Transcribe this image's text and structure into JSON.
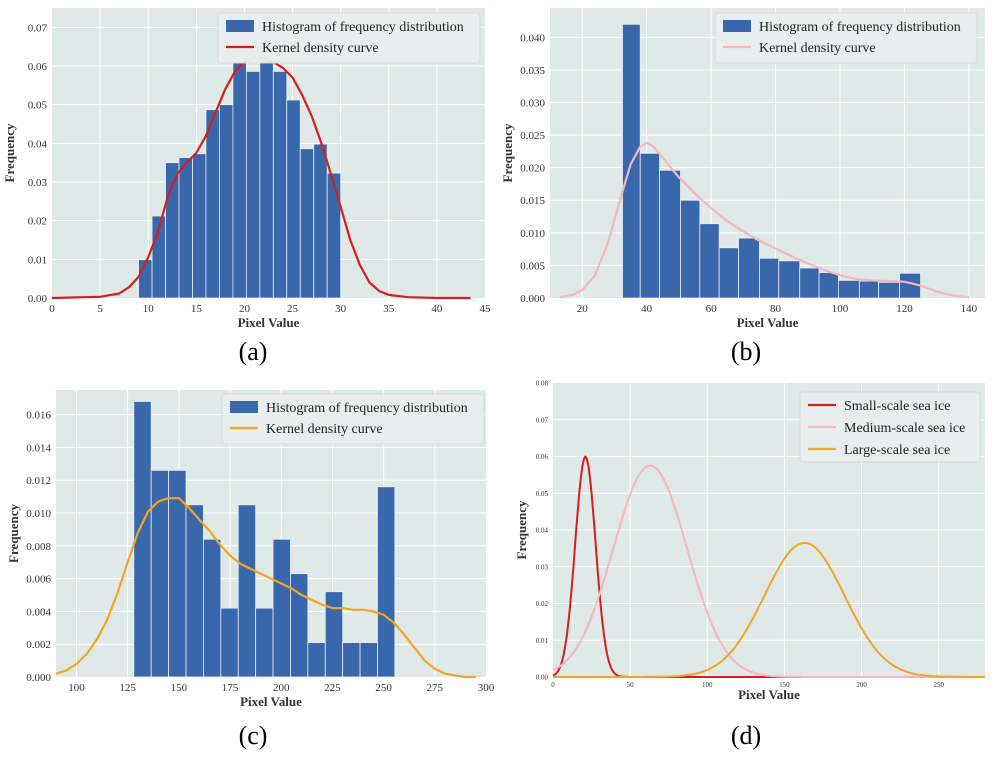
{
  "chart_data": [
    {
      "panel": "(a)",
      "type": "bar",
      "xlabel": "Pixel Value",
      "ylabel": "Frequency",
      "xlim": [
        0,
        45
      ],
      "ylim": [
        0,
        0.075
      ],
      "xticks": [
        0,
        5,
        10,
        15,
        20,
        25,
        30,
        35,
        40,
        45
      ],
      "yticks": [
        0.0,
        0.01,
        0.02,
        0.03,
        0.04,
        0.05,
        0.06,
        0.07
      ],
      "ytick_decimals": 2,
      "legend": {
        "histogram": "Histogram of frequency distribution",
        "kde": "Kernel density curve"
      },
      "bar_color": "#3867ab",
      "kde_color": "#d61e1e",
      "bins": [
        {
          "start": 9.0,
          "end": 10.4,
          "value": 0.0099
        },
        {
          "start": 10.4,
          "end": 11.8,
          "value": 0.0212
        },
        {
          "start": 11.8,
          "end": 13.2,
          "value": 0.035
        },
        {
          "start": 13.2,
          "end": 14.6,
          "value": 0.0363
        },
        {
          "start": 14.6,
          "end": 16.0,
          "value": 0.0373
        },
        {
          "start": 16.0,
          "end": 17.4,
          "value": 0.0487
        },
        {
          "start": 17.4,
          "end": 18.8,
          "value": 0.05
        },
        {
          "start": 18.8,
          "end": 20.2,
          "value": 0.061
        },
        {
          "start": 20.2,
          "end": 21.6,
          "value": 0.0586
        },
        {
          "start": 21.6,
          "end": 23.0,
          "value": 0.061
        },
        {
          "start": 23.0,
          "end": 24.4,
          "value": 0.0586
        },
        {
          "start": 24.4,
          "end": 25.8,
          "value": 0.0512
        },
        {
          "start": 25.8,
          "end": 27.2,
          "value": 0.0386
        },
        {
          "start": 27.2,
          "end": 28.6,
          "value": 0.0398
        },
        {
          "start": 28.6,
          "end": 30.0,
          "value": 0.0323
        }
      ],
      "kde": {
        "x": [
          0,
          5,
          7,
          8,
          9,
          10,
          11,
          12,
          13,
          14,
          15,
          16,
          17,
          18,
          19,
          20,
          21,
          22,
          23,
          24,
          25,
          26,
          27,
          28,
          29,
          30,
          31,
          32,
          33,
          34,
          35,
          37,
          40,
          43.5
        ],
        "y": [
          0.0,
          0.0003,
          0.0012,
          0.0028,
          0.0055,
          0.0105,
          0.017,
          0.026,
          0.032,
          0.035,
          0.0375,
          0.042,
          0.048,
          0.054,
          0.0585,
          0.0612,
          0.062,
          0.0618,
          0.061,
          0.0595,
          0.057,
          0.0525,
          0.047,
          0.04,
          0.032,
          0.0235,
          0.015,
          0.0085,
          0.004,
          0.0018,
          0.0008,
          0.0002,
          0.0,
          0.0
        ]
      }
    },
    {
      "panel": "(b)",
      "type": "bar",
      "xlabel": "Pixel Value",
      "ylabel": "Frequency",
      "xlim": [
        10,
        145
      ],
      "ylim": [
        0,
        0.0445
      ],
      "xticks": [
        20,
        40,
        60,
        80,
        100,
        120,
        140
      ],
      "yticks": [
        0.0,
        0.005,
        0.01,
        0.015,
        0.02,
        0.025,
        0.03,
        0.035,
        0.04
      ],
      "ytick_decimals": 3,
      "legend": {
        "histogram": "Histogram of frequency distribution",
        "kde": "Kernel density curve"
      },
      "bar_color": "#3867ab",
      "kde_color": "#f7b6c1",
      "bins": [
        {
          "start": 32.5,
          "end": 38.0,
          "value": 0.042
        },
        {
          "start": 38.0,
          "end": 44.0,
          "value": 0.0222
        },
        {
          "start": 44.0,
          "end": 50.5,
          "value": 0.0196
        },
        {
          "start": 50.5,
          "end": 56.5,
          "value": 0.015
        },
        {
          "start": 56.5,
          "end": 62.5,
          "value": 0.0114
        },
        {
          "start": 62.5,
          "end": 68.5,
          "value": 0.0077
        },
        {
          "start": 68.5,
          "end": 75.0,
          "value": 0.0092
        },
        {
          "start": 75.0,
          "end": 81.0,
          "value": 0.0061
        },
        {
          "start": 81.0,
          "end": 87.5,
          "value": 0.0057
        },
        {
          "start": 87.5,
          "end": 93.5,
          "value": 0.0046
        },
        {
          "start": 93.5,
          "end": 99.5,
          "value": 0.0039
        },
        {
          "start": 99.5,
          "end": 106.0,
          "value": 0.0027
        },
        {
          "start": 106.0,
          "end": 112.0,
          "value": 0.0026
        },
        {
          "start": 112.0,
          "end": 118.5,
          "value": 0.0024
        },
        {
          "start": 118.5,
          "end": 125.0,
          "value": 0.0038
        }
      ],
      "kde": {
        "x": [
          13,
          17,
          20,
          24,
          28,
          32,
          35,
          38,
          40,
          42,
          45,
          50,
          55,
          60,
          65,
          70,
          75,
          80,
          85,
          90,
          95,
          100,
          105,
          110,
          115,
          120,
          125,
          130,
          135,
          140
        ],
        "y": [
          0.0001,
          0.0005,
          0.0012,
          0.0035,
          0.0085,
          0.0155,
          0.0205,
          0.0232,
          0.0238,
          0.0233,
          0.0215,
          0.0185,
          0.016,
          0.0138,
          0.0118,
          0.0102,
          0.0088,
          0.0076,
          0.0064,
          0.0053,
          0.0043,
          0.0035,
          0.0029,
          0.0027,
          0.0026,
          0.0025,
          0.0019,
          0.001,
          0.0004,
          0.0001
        ]
      }
    },
    {
      "panel": "(c)",
      "type": "bar",
      "xlabel": "Pixel Value",
      "ylabel": "Frequency",
      "xlim": [
        90,
        300
      ],
      "ylim": [
        0,
        0.0175
      ],
      "xticks": [
        100,
        125,
        150,
        175,
        200,
        225,
        250,
        275,
        300
      ],
      "yticks": [
        0.0,
        0.002,
        0.004,
        0.006,
        0.008,
        0.01,
        0.012,
        0.014,
        0.016
      ],
      "ytick_decimals": 3,
      "legend": {
        "histogram": "Histogram of frequency distribution",
        "kde": "Kernel density curve"
      },
      "bar_color": "#3867ab",
      "kde_color": "#f2a51f",
      "bins": [
        {
          "start": 128,
          "end": 136.5,
          "value": 0.0168
        },
        {
          "start": 136.5,
          "end": 145,
          "value": 0.0126
        },
        {
          "start": 145,
          "end": 153.5,
          "value": 0.0126
        },
        {
          "start": 153.5,
          "end": 162,
          "value": 0.0105
        },
        {
          "start": 162,
          "end": 170.5,
          "value": 0.0084
        },
        {
          "start": 170.5,
          "end": 179,
          "value": 0.0042
        },
        {
          "start": 179,
          "end": 187.5,
          "value": 0.0105
        },
        {
          "start": 187.5,
          "end": 196,
          "value": 0.0042
        },
        {
          "start": 196,
          "end": 204.5,
          "value": 0.0084
        },
        {
          "start": 204.5,
          "end": 213,
          "value": 0.0063
        },
        {
          "start": 213,
          "end": 221.5,
          "value": 0.0021
        },
        {
          "start": 221.5,
          "end": 230,
          "value": 0.0052
        },
        {
          "start": 230,
          "end": 238.5,
          "value": 0.0021
        },
        {
          "start": 238.5,
          "end": 247,
          "value": 0.0021
        },
        {
          "start": 247,
          "end": 255.5,
          "value": 0.0116
        }
      ],
      "kde": {
        "x": [
          90,
          95,
          100,
          105,
          110,
          115,
          120,
          125,
          130,
          135,
          140,
          145,
          150,
          155,
          160,
          165,
          170,
          175,
          180,
          185,
          190,
          195,
          200,
          205,
          210,
          215,
          220,
          225,
          230,
          235,
          240,
          245,
          250,
          255,
          260,
          265,
          270,
          275,
          280,
          285,
          290,
          295
        ],
        "y": [
          0.0002,
          0.0004,
          0.0008,
          0.0014,
          0.0023,
          0.0035,
          0.0051,
          0.007,
          0.0088,
          0.0101,
          0.0107,
          0.0109,
          0.0109,
          0.0103,
          0.0096,
          0.0089,
          0.0081,
          0.0074,
          0.0069,
          0.0066,
          0.0063,
          0.006,
          0.0057,
          0.0054,
          0.005,
          0.0047,
          0.0044,
          0.0042,
          0.0042,
          0.0041,
          0.0041,
          0.004,
          0.0038,
          0.0033,
          0.0026,
          0.0018,
          0.001,
          0.0005,
          0.0002,
          0.0001,
          0.0,
          0.0
        ]
      }
    },
    {
      "panel": "(d)",
      "type": "line",
      "xlabel": "Pixel Value",
      "ylabel": "Frequency",
      "xlim": [
        0,
        280
      ],
      "ylim": [
        0,
        0.08
      ],
      "xticks": [
        0,
        50,
        100,
        150,
        200,
        250
      ],
      "yticks": [
        0.0,
        0.01,
        0.02,
        0.03,
        0.04,
        0.05,
        0.06,
        0.07,
        0.08
      ],
      "ytick_decimals": 2,
      "series": [
        {
          "name": "Small-scale sea ice",
          "color": "#d61e1e",
          "mean": 21,
          "sd": 6.6,
          "peak": 0.06
        },
        {
          "name": "Medium-scale sea ice",
          "color": "#f7b6c1",
          "mean": 63,
          "sd": 24,
          "peak": 0.0575
        },
        {
          "name": "Large-scale sea ice",
          "color": "#f2a51f",
          "mean": 163,
          "sd": 26,
          "peak": 0.0365
        }
      ]
    }
  ],
  "panel_captions": [
    "(a)",
    "(b)",
    "(c)",
    "(d)"
  ]
}
